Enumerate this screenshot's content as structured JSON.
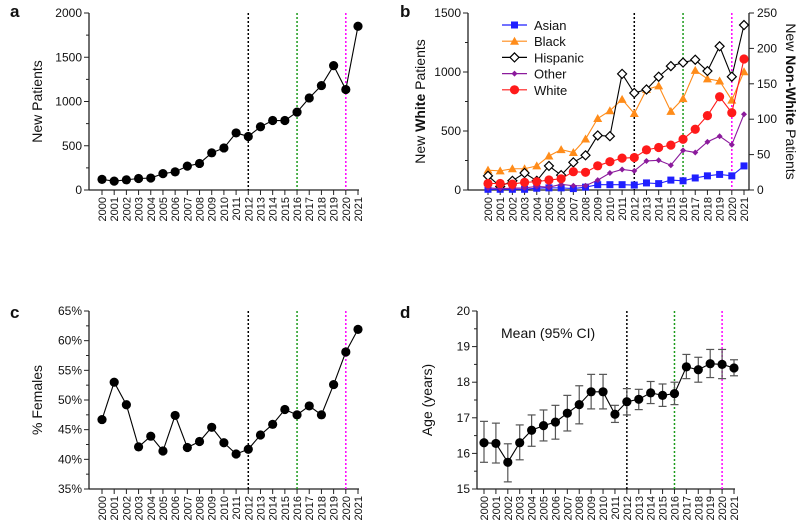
{
  "years": [
    "2000",
    "2001",
    "2002",
    "2003",
    "2004",
    "2005",
    "2006",
    "2007",
    "2008",
    "2009",
    "2010",
    "2011",
    "2012",
    "2013",
    "2014",
    "2015",
    "2016",
    "2017",
    "2018",
    "2019",
    "2020",
    "2021"
  ],
  "reference_lines": [
    {
      "year": "2012",
      "color": "#000000"
    },
    {
      "year": "2016",
      "color": "#1a9a1a"
    },
    {
      "year": "2020",
      "color": "#ff00ff"
    }
  ],
  "chart_data": [
    {
      "panel": "a",
      "type": "line",
      "ylabel": "New Patients",
      "ylim": [
        0,
        2000
      ],
      "yticks": [
        "0",
        "500",
        "1000",
        "1500",
        "2000"
      ],
      "series": [
        {
          "values": [
            120,
            100,
            115,
            130,
            135,
            185,
            205,
            270,
            300,
            420,
            475,
            645,
            605,
            715,
            785,
            785,
            880,
            1040,
            1180,
            1405,
            1135,
            1850
          ],
          "color": "#000000",
          "marker": "circle"
        }
      ]
    },
    {
      "panel": "b",
      "type": "line",
      "ylabel_parts": [
        "New ",
        "White",
        " Patients"
      ],
      "ylabel_right_parts": [
        "New ",
        "Non-White",
        " Patients"
      ],
      "ylim": [
        0,
        1500
      ],
      "ylim_right": [
        0,
        250
      ],
      "yticks": [
        "0",
        "500",
        "1000",
        "1500"
      ],
      "yticks_right": [
        "0",
        "50",
        "100",
        "150",
        "200",
        "250"
      ],
      "legend": "top-left",
      "series": [
        {
          "name": "Asian",
          "axis": "right",
          "color": "#1f1fff",
          "marker": "square",
          "values": [
            1,
            1,
            1,
            1,
            2.5,
            3,
            3,
            2,
            4,
            7.5,
            7.5,
            7.5,
            7,
            10,
            9,
            14,
            13,
            17,
            20,
            22,
            20,
            34
          ]
        },
        {
          "name": "Black",
          "axis": "right",
          "color": "#ff8c1a",
          "marker": "triangle",
          "values": [
            28,
            27,
            30,
            30,
            34,
            48,
            57,
            53,
            72,
            101,
            112,
            128,
            108,
            142,
            147,
            111,
            129,
            169,
            157,
            154,
            127,
            167
          ]
        },
        {
          "name": "Hispanic",
          "axis": "right",
          "color": "#000000",
          "marker": "diamond-open",
          "values": [
            20,
            5,
            13,
            24,
            13,
            34,
            21,
            39,
            49,
            77,
            76,
            164,
            137,
            142,
            160,
            175,
            180,
            184,
            168,
            203,
            160,
            233
          ]
        },
        {
          "name": "Other",
          "axis": "right",
          "color": "#8b1a9c",
          "marker": "diamond",
          "values": [
            3,
            2,
            2.5,
            3,
            5,
            4,
            8,
            6,
            6,
            14,
            24,
            29,
            27,
            41,
            42,
            35,
            56,
            53,
            68,
            76,
            64,
            107
          ]
        },
        {
          "name": "White",
          "axis": "left",
          "color": "#ff1a1a",
          "marker": "circle",
          "values": [
            55,
            55,
            50,
            65,
            70,
            85,
            95,
            155,
            150,
            205,
            240,
            270,
            275,
            340,
            360,
            380,
            430,
            515,
            630,
            790,
            655,
            1110
          ]
        }
      ]
    },
    {
      "panel": "c",
      "type": "line",
      "ylabel": "% Females",
      "ylim": [
        35,
        65
      ],
      "yticks": [
        "35%",
        "40%",
        "45%",
        "50%",
        "55%",
        "60%",
        "65%"
      ],
      "series": [
        {
          "values": [
            46.7,
            53.0,
            49.2,
            42.1,
            43.9,
            41.4,
            47.4,
            42.0,
            43.0,
            45.4,
            42.8,
            40.9,
            41.7,
            44.1,
            45.9,
            48.4,
            47.5,
            49.0,
            47.5,
            52.6,
            58.1,
            61.9
          ],
          "color": "#000000",
          "marker": "circle"
        }
      ]
    },
    {
      "panel": "d",
      "type": "line",
      "ylabel": "Age (years)",
      "annotation": "Mean (95% CI)",
      "ylim": [
        15,
        20
      ],
      "yticks": [
        "15",
        "16",
        "17",
        "18",
        "19",
        "20"
      ],
      "series": [
        {
          "values": [
            16.3,
            16.28,
            15.75,
            16.3,
            16.65,
            16.78,
            16.88,
            17.13,
            17.37,
            17.73,
            17.73,
            17.1,
            17.45,
            17.52,
            17.7,
            17.63,
            17.68,
            18.43,
            18.35,
            18.52,
            18.5,
            18.4
          ],
          "ci_low": [
            15.75,
            15.73,
            15.2,
            15.82,
            16.2,
            16.35,
            16.4,
            16.63,
            16.83,
            17.25,
            17.25,
            16.87,
            17.08,
            17.23,
            17.4,
            17.32,
            17.37,
            18.1,
            18.0,
            18.13,
            18.1,
            18.18
          ],
          "ci_high": [
            16.9,
            16.85,
            16.27,
            16.8,
            17.08,
            17.22,
            17.35,
            17.63,
            17.9,
            18.22,
            18.22,
            17.35,
            17.82,
            17.8,
            18.02,
            17.95,
            18.0,
            18.78,
            18.7,
            18.92,
            18.92,
            18.63
          ],
          "color": "#000000",
          "marker": "circle"
        }
      ]
    }
  ]
}
